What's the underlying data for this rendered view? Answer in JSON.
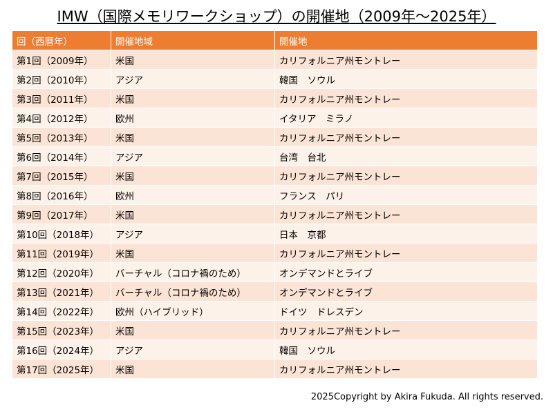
{
  "title": "IMW（国際メモリワークショップ）の開催地（2009年～2025年）",
  "table": {
    "header": [
      "回（西暦年）",
      "開催地域",
      "開催地"
    ],
    "rows": [
      [
        "第1回（2009年）",
        "米国",
        "カリフォルニア州モントレー"
      ],
      [
        "第2回（2010年）",
        "アジア",
        "韓国　ソウル"
      ],
      [
        "第3回（2011年）",
        "米国",
        "カリフォルニア州モントレー"
      ],
      [
        "第4回（2012年）",
        "欧州",
        "イタリア　ミラノ"
      ],
      [
        "第5回（2013年）",
        "米国",
        "カリフォルニア州モントレー"
      ],
      [
        "第6回（2014年）",
        "アジア",
        "台湾　台北"
      ],
      [
        "第7回（2015年）",
        "米国",
        "カリフォルニア州モントレー"
      ],
      [
        "第8回（2016年）",
        "欧州",
        "フランス　パリ"
      ],
      [
        "第9回（2017年）",
        "米国",
        "カリフォルニア州モントレー"
      ],
      [
        "第10回（2018年）",
        "アジア",
        "日本　京都"
      ],
      [
        "第11回（2019年）",
        "米国",
        "カリフォルニア州モントレー"
      ],
      [
        "第12回（2020年）",
        "バーチャル（コロナ禍のため）",
        "オンデマンドとライブ"
      ],
      [
        "第13回（2021年）",
        "バーチャル（コロナ禍のため）",
        "オンデマンドとライブ"
      ],
      [
        "第14回（2022年）",
        "欧州（ハイブリッド）",
        "ドイツ　ドレスデン"
      ],
      [
        "第15回（2023年）",
        "米国",
        "カリフォルニア州モントレー"
      ],
      [
        "第16回（2024年）",
        "アジア",
        "韓国　ソウル"
      ],
      [
        "第17回（2025年）",
        "米国",
        "カリフォルニア州モントレー"
      ]
    ]
  },
  "footer": "2025Copyright by Akira Fukuda. All rights reserved."
}
